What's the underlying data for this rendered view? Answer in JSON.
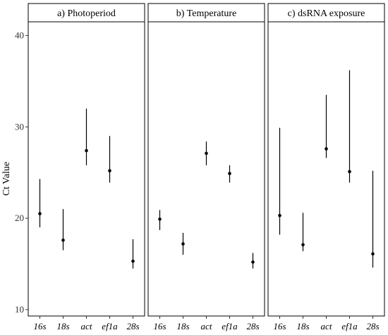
{
  "chart_data": [
    {
      "type": "scatter",
      "title": "a) Photoperiod",
      "categories": [
        "16s",
        "18s",
        "act",
        "ef1a",
        "28s"
      ],
      "series": [
        {
          "values": [
            20.5,
            17.6,
            27.4,
            25.2,
            15.3
          ],
          "lower": [
            19.0,
            16.5,
            25.8,
            23.9,
            14.5
          ],
          "upper": [
            24.3,
            21.0,
            32.0,
            29.0,
            17.7
          ]
        }
      ],
      "ylabel": "Ct Value",
      "ylim": [
        9.3,
        41.5
      ],
      "yticks": [
        10,
        20,
        30,
        40
      ],
      "grid": false
    },
    {
      "type": "scatter",
      "title": "b) Temperature",
      "categories": [
        "16s",
        "18s",
        "act",
        "ef1a",
        "28s"
      ],
      "series": [
        {
          "values": [
            19.9,
            17.2,
            27.1,
            24.9,
            15.2
          ],
          "lower": [
            18.7,
            16.0,
            25.8,
            23.9,
            14.5
          ],
          "upper": [
            20.9,
            18.4,
            28.4,
            25.8,
            16.2
          ]
        }
      ],
      "ylim": [
        9.3,
        41.5
      ],
      "grid": false
    },
    {
      "type": "scatter",
      "title": "c) dsRNA exposure",
      "categories": [
        "16s",
        "18s",
        "act",
        "ef1a",
        "28s"
      ],
      "series": [
        {
          "values": [
            20.3,
            17.1,
            27.6,
            25.1,
            16.1
          ],
          "lower": [
            18.2,
            16.4,
            26.6,
            23.9,
            14.6
          ],
          "upper": [
            29.9,
            20.6,
            33.5,
            36.2,
            25.2
          ]
        }
      ],
      "ylim": [
        9.3,
        41.5
      ],
      "grid": false
    }
  ]
}
